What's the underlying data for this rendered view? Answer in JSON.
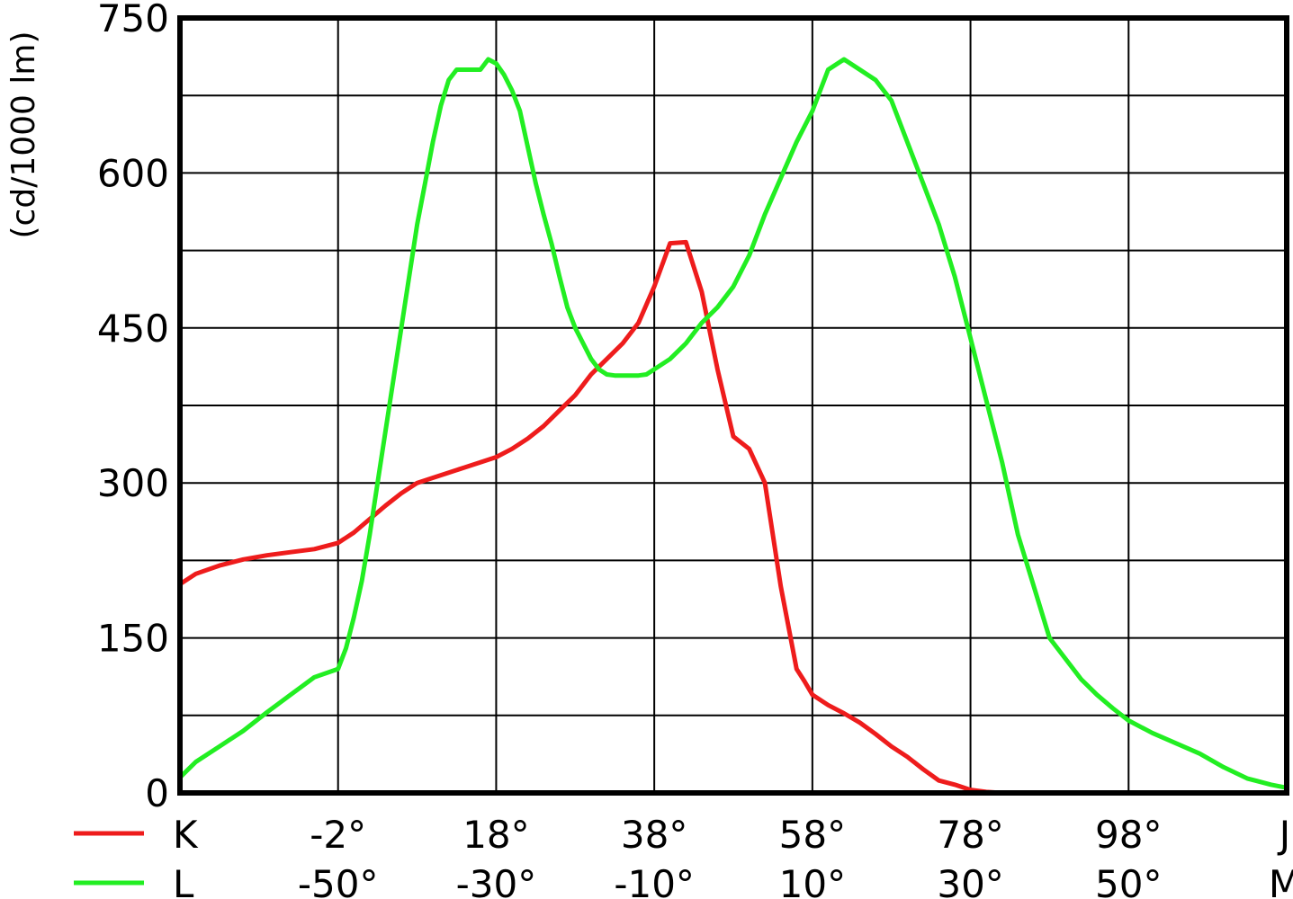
{
  "chart_data": {
    "type": "line",
    "ylabel": "(cd/1000 lm)",
    "ylim": [
      0,
      750
    ],
    "y_ticks": [
      "0",
      "150",
      "300",
      "450",
      "600",
      "750"
    ],
    "x_rows": [
      {
        "end_label": "K",
        "ticks": [
          "-2°",
          "18°",
          "38°",
          "58°",
          "78°",
          "98°"
        ],
        "last": "J"
      },
      {
        "end_label": "L",
        "ticks": [
          "-50°",
          "-30°",
          "-10°",
          "10°",
          "30°",
          "50°"
        ],
        "last": "M"
      }
    ],
    "grid": true,
    "colors": {
      "K": "#ee1c1c",
      "L": "#22ee22"
    },
    "x_range": [
      -70,
      70
    ],
    "series": [
      {
        "name": "K",
        "x": [
          -70,
          -68,
          -65,
          -62,
          -59,
          -56,
          -53,
          -50,
          -48,
          -46,
          -44,
          -42,
          -40,
          -38,
          -36,
          -34,
          -32,
          -30,
          -28,
          -26,
          -24,
          -22,
          -20,
          -18,
          -16,
          -14,
          -12,
          -10,
          -8,
          -6,
          -4,
          -2,
          0,
          2,
          4,
          6,
          8,
          9,
          10,
          12,
          14,
          16,
          18,
          20,
          22,
          24,
          26,
          28,
          30,
          32,
          34,
          36,
          38,
          40,
          42,
          44,
          46,
          48
        ],
        "y": [
          202,
          212,
          220,
          226,
          230,
          233,
          236,
          242,
          252,
          265,
          278,
          290,
          300,
          305,
          310,
          315,
          320,
          325,
          333,
          343,
          355,
          370,
          385,
          405,
          420,
          435,
          455,
          490,
          532,
          533,
          485,
          410,
          345,
          333,
          300,
          200,
          120,
          108,
          95,
          85,
          77,
          68,
          57,
          45,
          35,
          23,
          12,
          8,
          3,
          1,
          0,
          0,
          0,
          0,
          0,
          0,
          0,
          0
        ]
      },
      {
        "name": "L",
        "x": [
          -70,
          -68,
          -65,
          -62,
          -59,
          -56,
          -53,
          -50,
          -49,
          -48,
          -47,
          -46,
          -45,
          -44,
          -43,
          -42,
          -41,
          -40,
          -39,
          -38,
          -37,
          -36,
          -35,
          -34,
          -33,
          -32,
          -31,
          -30,
          -29,
          -28,
          -27,
          -26,
          -25,
          -24,
          -23,
          -22,
          -21,
          -20,
          -19,
          -18,
          -17,
          -16,
          -15,
          -14,
          -13,
          -12,
          -11,
          -10,
          -8,
          -6,
          -4,
          -2,
          0,
          2,
          4,
          6,
          8,
          10,
          12,
          14,
          16,
          18,
          20,
          22,
          24,
          26,
          28,
          30,
          32,
          34,
          36,
          38,
          40,
          42,
          44,
          46,
          48,
          50,
          53,
          56,
          59,
          62,
          65,
          68,
          70
        ],
        "y": [
          15,
          30,
          45,
          60,
          78,
          95,
          112,
          120,
          140,
          170,
          205,
          250,
          300,
          350,
          400,
          450,
          500,
          550,
          590,
          630,
          665,
          690,
          700,
          700,
          700,
          700,
          710,
          706,
          695,
          680,
          660,
          625,
          590,
          560,
          532,
          500,
          470,
          450,
          435,
          420,
          410,
          405,
          404,
          404,
          404,
          404,
          405,
          410,
          420,
          435,
          455,
          470,
          490,
          520,
          560,
          595,
          630,
          660,
          700,
          710,
          700,
          690,
          670,
          630,
          590,
          550,
          500,
          440,
          380,
          320,
          250,
          200,
          150,
          130,
          110,
          95,
          82,
          70,
          58,
          48,
          38,
          25,
          14,
          8,
          5
        ]
      }
    ]
  }
}
